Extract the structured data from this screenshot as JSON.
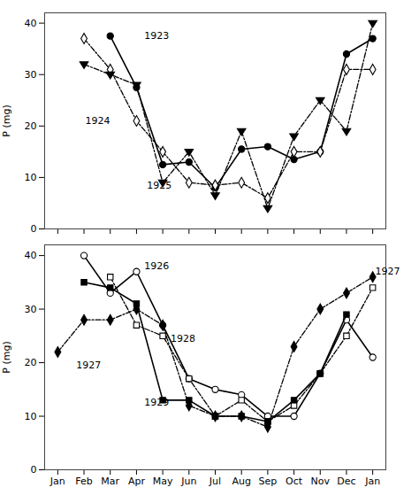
{
  "chart_data": [
    {
      "type": "line",
      "x": [
        0,
        1,
        2,
        3,
        4,
        5,
        6,
        7,
        8,
        9,
        10,
        11,
        12
      ],
      "xlim": [
        -0.5,
        12.5
      ],
      "xticks": [
        0,
        1,
        2,
        3,
        4,
        5,
        6,
        7,
        8,
        9,
        10,
        11,
        12
      ],
      "ylim": [
        0,
        42
      ],
      "yticks": [
        0,
        10,
        20,
        30,
        40
      ],
      "ylabel": "P (mg)",
      "tick_labels": "y",
      "series": [
        {
          "color": "black",
          "marker": "circle-filled",
          "line_style": "solid",
          "values": [
            null,
            null,
            37.5,
            27.5,
            12.5,
            13,
            8,
            15.5,
            16,
            13.5,
            15,
            34,
            37
          ]
        },
        {
          "color": "black",
          "marker": "diamond-open",
          "line_style": "dashdot",
          "values": [
            null,
            37,
            31,
            21,
            15,
            9,
            8.5,
            9,
            6,
            15,
            15,
            31,
            31
          ]
        },
        {
          "color": "black",
          "marker": "triangle-down-filled",
          "line_style": "dashdot",
          "values": [
            null,
            32,
            30,
            28,
            9,
            15,
            6.5,
            19,
            4,
            18,
            25,
            19,
            40
          ]
        }
      ],
      "annotations": [
        {
          "text": "1923",
          "x": 3.3,
          "y": 37.5
        },
        {
          "text": "1924",
          "x": 1.05,
          "y": 21.0
        },
        {
          "text": "1925",
          "x": 3.4,
          "y": 8.5
        }
      ]
    },
    {
      "type": "line",
      "x": [
        0,
        1,
        2,
        3,
        4,
        5,
        6,
        7,
        8,
        9,
        10,
        11,
        12
      ],
      "xlim": [
        -0.5,
        12.5
      ],
      "xticks": [
        {
          "value": 0,
          "label": "Jan"
        },
        {
          "value": 1,
          "label": "Feb"
        },
        {
          "value": 2,
          "label": "Mar"
        },
        {
          "value": 3,
          "label": "Apr"
        },
        {
          "value": 4,
          "label": "May"
        },
        {
          "value": 5,
          "label": "Jun"
        },
        {
          "value": 6,
          "label": "Jul"
        },
        {
          "value": 7,
          "label": "Aug"
        },
        {
          "value": 8,
          "label": "Sep"
        },
        {
          "value": 9,
          "label": "Oct"
        },
        {
          "value": 10,
          "label": "Nov"
        },
        {
          "value": 11,
          "label": "Dec"
        },
        {
          "value": 12,
          "label": "Jan"
        }
      ],
      "ylim": [
        0,
        42
      ],
      "yticks": [
        0,
        10,
        20,
        30,
        40
      ],
      "ylabel": "P (mg)",
      "series": [
        {
          "color": "black",
          "marker": "circle-open",
          "line_style": "solid",
          "values": [
            null,
            40,
            33,
            37,
            27,
            17,
            15,
            14,
            10,
            10,
            18,
            28,
            21
          ]
        },
        {
          "color": "black",
          "marker": "diamond-filled",
          "line_style": "dashdot",
          "values": [
            22,
            28,
            28,
            30,
            27,
            12,
            10,
            10,
            8,
            23,
            30,
            33,
            36
          ]
        },
        {
          "color": "black",
          "marker": "square-open",
          "line_style": "dashdot",
          "values": [
            null,
            null,
            36,
            27,
            25,
            17,
            10,
            13,
            9,
            12,
            18,
            25,
            34
          ]
        },
        {
          "color": "black",
          "marker": "square-filled",
          "line_style": "solid",
          "values": [
            null,
            35,
            34,
            31,
            13,
            13,
            10,
            10,
            9,
            13,
            18,
            29,
            null
          ]
        }
      ],
      "annotations": [
        {
          "text": "1926",
          "x": 3.3,
          "y": 38.0
        },
        {
          "text": "1927",
          "x": 0.7,
          "y": 19.5
        },
        {
          "text": "1927",
          "x": 12.1,
          "y": 37
        },
        {
          "text": "1928",
          "x": 4.3,
          "y": 24.5
        },
        {
          "text": "1929",
          "x": 3.3,
          "y": 12.5
        }
      ]
    }
  ]
}
